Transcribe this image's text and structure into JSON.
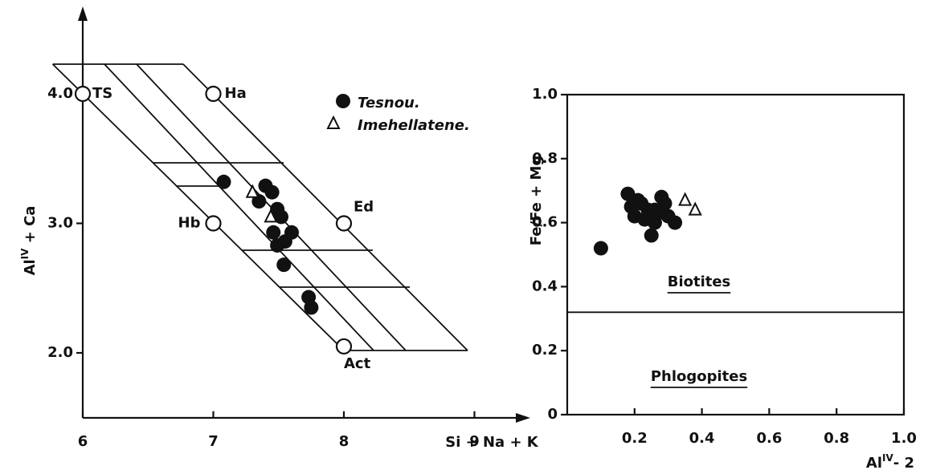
{
  "chart_data": [
    {
      "type": "scatter",
      "xlabel": "Si + Na + K",
      "ylabel": {
        "base": "Al",
        "sup": "IV",
        "rest": " + Ca"
      },
      "xlim": [
        6,
        9.4
      ],
      "ylim": [
        1.5,
        4.65
      ],
      "xticks": [
        6,
        7,
        8,
        9
      ],
      "yticks": [
        {
          "value": 2,
          "label": "2.0"
        },
        {
          "value": 3,
          "label": "3.0"
        },
        {
          "value": 4,
          "label": "4.0"
        }
      ],
      "end_members": {
        "labels": [
          "TS",
          "Ha",
          "Hb",
          "Ed",
          "Act"
        ],
        "x": [
          6,
          7,
          7,
          8,
          8
        ],
        "values": [
          4,
          4,
          3,
          3,
          2.05
        ]
      },
      "series": [
        {
          "name": "Tesnou.",
          "color": "#111111",
          "marker": "circle",
          "x": [
            7.08,
            7.4,
            7.45,
            7.35,
            7.49,
            7.46,
            7.52,
            7.55,
            7.49,
            7.6,
            7.54,
            7.73,
            7.75
          ],
          "values": [
            3.32,
            3.29,
            3.24,
            3.17,
            3.11,
            2.93,
            3.05,
            2.86,
            2.83,
            2.93,
            2.68,
            2.43,
            2.35
          ]
        },
        {
          "name": "Imehellatene.",
          "color": "#111111",
          "marker": "triangle",
          "x": [
            7.3,
            7.44
          ],
          "values": [
            3.24,
            3.05
          ]
        }
      ]
    },
    {
      "type": "scatter",
      "xlabel": {
        "base": "Al",
        "sup": "IV",
        "rest": "- 2"
      },
      "ylabel": "Fe/Fe + Mg",
      "xlim": [
        0,
        1
      ],
      "ylim": [
        0,
        1
      ],
      "xticks": [
        {
          "value": 0.2,
          "label": "0.2"
        },
        {
          "value": 0.4,
          "label": "0.4"
        },
        {
          "value": 0.6,
          "label": "0.6"
        },
        {
          "value": 0.8,
          "label": "0.8"
        },
        {
          "value": 1,
          "label": "1.0"
        }
      ],
      "yticks": [
        0,
        {
          "value": 0.2,
          "label": "0.2"
        },
        {
          "value": 0.4,
          "label": "0.4"
        },
        {
          "value": 0.6,
          "label": "0.6"
        },
        {
          "value": 0.8,
          "label": "0.8"
        },
        {
          "value": 1,
          "label": "1.0"
        }
      ],
      "reference_line": 0.32,
      "annotations": [
        "Biotites",
        "Phlogopites"
      ],
      "series": [
        {
          "color": "#111111",
          "marker": "circle",
          "x": [
            0.1,
            0.18,
            0.2,
            0.22,
            0.24,
            0.26,
            0.28,
            0.3,
            0.19,
            0.23,
            0.27,
            0.25,
            0.21,
            0.29,
            0.32,
            0.26
          ],
          "values": [
            0.52,
            0.69,
            0.62,
            0.66,
            0.64,
            0.6,
            0.68,
            0.62,
            0.65,
            0.61,
            0.63,
            0.56,
            0.67,
            0.66,
            0.6,
            0.64
          ]
        },
        {
          "color": "#111111",
          "marker": "triangle",
          "x": [
            0.35,
            0.38
          ],
          "values": [
            0.67,
            0.64
          ]
        }
      ]
    }
  ]
}
